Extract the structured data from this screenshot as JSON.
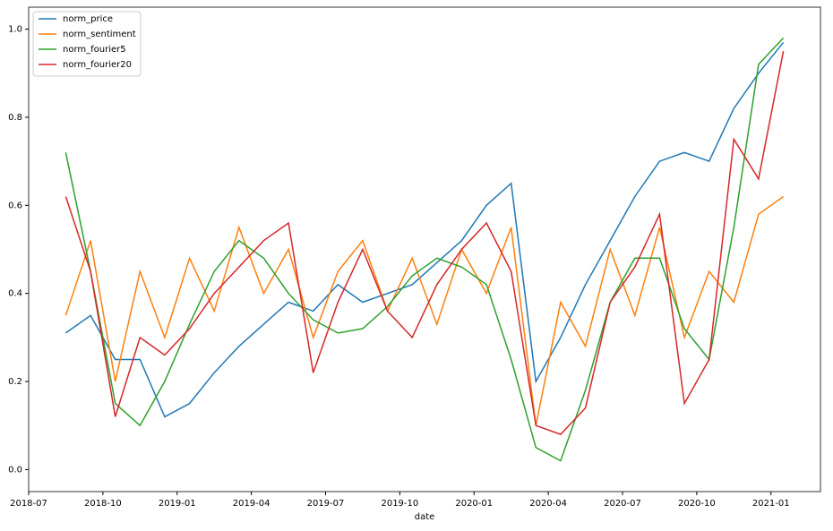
{
  "chart_data": {
    "type": "line",
    "x_label": "date",
    "x": [
      "2018-08",
      "2018-09",
      "2018-10",
      "2018-11",
      "2018-12",
      "2019-01",
      "2019-02",
      "2019-03",
      "2019-04",
      "2019-05",
      "2019-06",
      "2019-07",
      "2019-08",
      "2019-09",
      "2019-10",
      "2019-11",
      "2019-12",
      "2020-01",
      "2020-02",
      "2020-03",
      "2020-04",
      "2020-05",
      "2020-06",
      "2020-07",
      "2020-08",
      "2020-09",
      "2020-10",
      "2020-11",
      "2020-12",
      "2021-01"
    ],
    "series": [
      {
        "name": "norm_price",
        "color": "#1f77b4",
        "values": [
          0.31,
          0.35,
          0.25,
          0.25,
          0.12,
          0.15,
          0.22,
          0.28,
          0.33,
          0.38,
          0.36,
          0.42,
          0.38,
          0.4,
          0.42,
          0.47,
          0.52,
          0.6,
          0.65,
          0.2,
          0.3,
          0.42,
          0.52,
          0.62,
          0.7,
          0.72,
          0.7,
          0.82,
          0.9,
          0.97
        ]
      },
      {
        "name": "norm_sentiment",
        "color": "#ff7f0e",
        "values": [
          0.35,
          0.52,
          0.2,
          0.45,
          0.3,
          0.48,
          0.36,
          0.55,
          0.4,
          0.5,
          0.3,
          0.45,
          0.52,
          0.36,
          0.48,
          0.33,
          0.5,
          0.4,
          0.55,
          0.1,
          0.38,
          0.28,
          0.5,
          0.35,
          0.55,
          0.3,
          0.45,
          0.38,
          0.58,
          0.62
        ]
      },
      {
        "name": "norm_fourier5",
        "color": "#2ca02c",
        "values": [
          0.72,
          0.45,
          0.15,
          0.1,
          0.2,
          0.33,
          0.45,
          0.52,
          0.48,
          0.4,
          0.34,
          0.31,
          0.32,
          0.37,
          0.44,
          0.48,
          0.46,
          0.42,
          0.25,
          0.05,
          0.02,
          0.18,
          0.38,
          0.48,
          0.48,
          0.32,
          0.25,
          0.55,
          0.92,
          0.98
        ]
      },
      {
        "name": "norm_fourier20",
        "color": "#d62728",
        "values": [
          0.62,
          0.45,
          0.12,
          0.3,
          0.26,
          0.32,
          0.4,
          0.46,
          0.52,
          0.56,
          0.22,
          0.38,
          0.5,
          0.36,
          0.3,
          0.42,
          0.5,
          0.56,
          0.45,
          0.1,
          0.08,
          0.14,
          0.38,
          0.46,
          0.58,
          0.15,
          0.25,
          0.75,
          0.66,
          0.95
        ]
      }
    ],
    "xlim": [
      "2018-07",
      "2021-03"
    ],
    "xticks": [
      "2018-07",
      "2018-10",
      "2019-01",
      "2019-04",
      "2019-07",
      "2019-10",
      "2020-01",
      "2020-04",
      "2020-07",
      "2020-10",
      "2021-01"
    ],
    "ylim": [
      -0.05,
      1.05
    ],
    "yticks": [
      {
        "value": 0,
        "label": "0.0"
      },
      0.2,
      0.4,
      0.6,
      0.8,
      {
        "value": 1,
        "label": "1.0"
      }
    ],
    "legend": "upper left",
    "grid": false
  }
}
